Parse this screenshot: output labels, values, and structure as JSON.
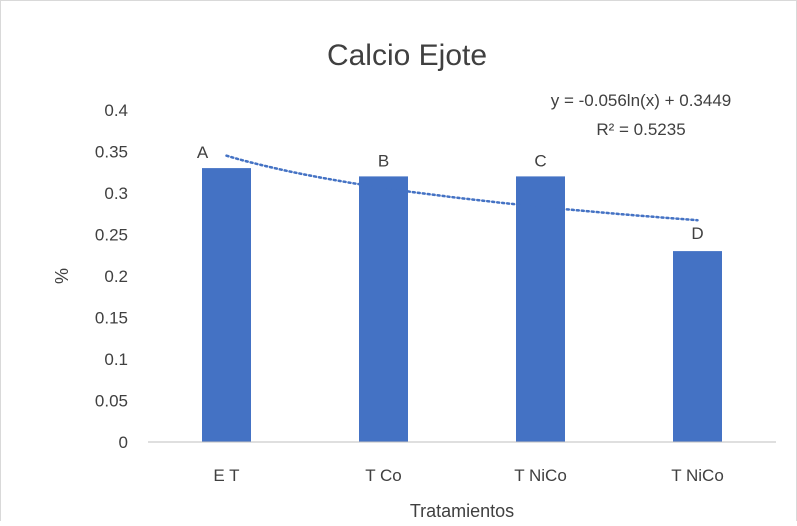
{
  "chart_data": {
    "type": "bar",
    "title": "Calcio  Ejote",
    "xlabel": "Tratamientos",
    "ylabel": "%",
    "categories": [
      "E T",
      "T Co",
      "T NiCo",
      "T NiCo"
    ],
    "series": [
      {
        "values": [
          0.33,
          0.32,
          0.32,
          0.23
        ],
        "color": "#4472C4"
      }
    ],
    "bar_labels": [
      "A",
      "B",
      "C",
      "D"
    ],
    "ylim": [
      0,
      0.4
    ],
    "y_ticks": [
      "0",
      "0.05",
      "0.1",
      "0.15",
      "0.2",
      "0.25",
      "0.3",
      "0.35",
      "0.4"
    ],
    "gridlines": false,
    "trendline": {
      "type": "logarithmic",
      "a": -0.056,
      "b": 0.3449,
      "style": "dotted",
      "color": "#4472C4",
      "equation_label": "y = -0.056ln(x) + 0.3449",
      "r2_label": "R² = 0.5235"
    },
    "colors": {
      "bar": "#4472C4",
      "axis": "#BFBFBF",
      "text": "#404040",
      "border": "#D9D9D9"
    }
  }
}
